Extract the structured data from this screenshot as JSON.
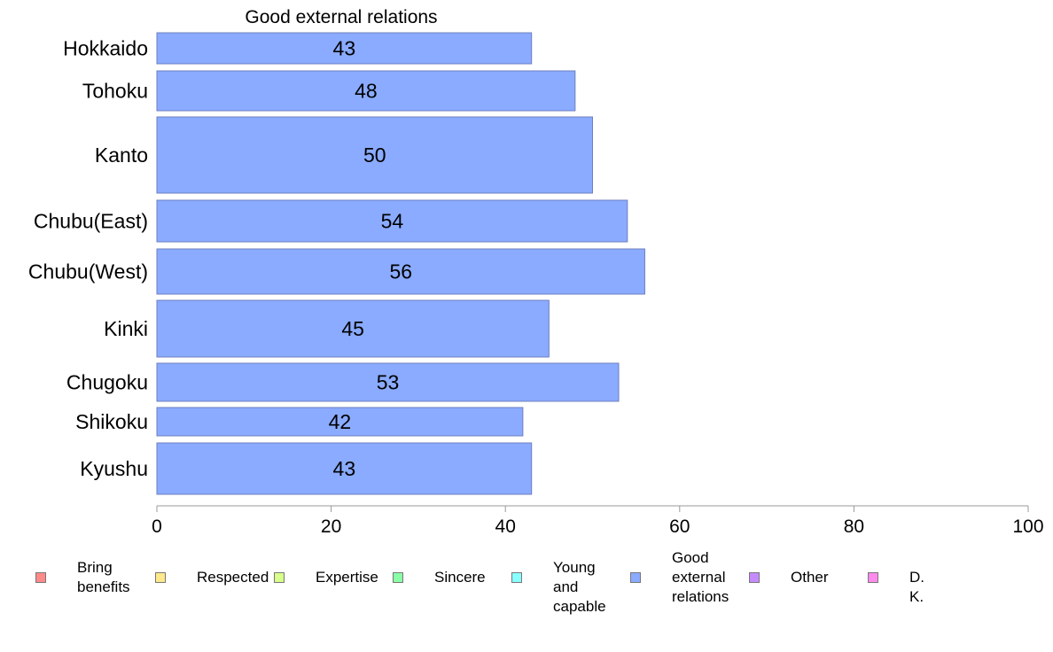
{
  "chart_data": {
    "type": "bar",
    "orientation": "horizontal",
    "title": "Good external relations",
    "categories": [
      "Hokkaido",
      "Tohoku",
      "Kanto",
      "Chubu(East)",
      "Chubu(West)",
      "Kinki",
      "Chugoku",
      "Shikoku",
      "Kyushu"
    ],
    "series": [
      {
        "name": "Good external relations",
        "color": "#8aabff",
        "values": [
          43,
          48,
          50,
          54,
          56,
          45,
          53,
          42,
          43
        ],
        "labels": [
          "43",
          "48",
          "50",
          "54",
          "56",
          "45",
          "53",
          "42",
          "43"
        ]
      }
    ],
    "xlim": [
      0,
      100
    ],
    "x_ticks": [
      0,
      20,
      40,
      60,
      80,
      100
    ],
    "grid": false,
    "legend_position": "bottom",
    "legend": [
      {
        "label": "Bring\nbenefits",
        "color": "#ff8a8a"
      },
      {
        "label": "Respected",
        "color": "#ffe98a"
      },
      {
        "label": "Expertise",
        "color": "#d7ff8a"
      },
      {
        "label": "Sincere",
        "color": "#8affa6"
      },
      {
        "label": "Young and\ncapable",
        "color": "#8affff"
      },
      {
        "label": "Good\nexternal\nrelations",
        "color": "#8aabff"
      },
      {
        "label": "Other",
        "color": "#c68aff"
      },
      {
        "label": "D. K.",
        "color": "#ff8aee"
      }
    ]
  }
}
